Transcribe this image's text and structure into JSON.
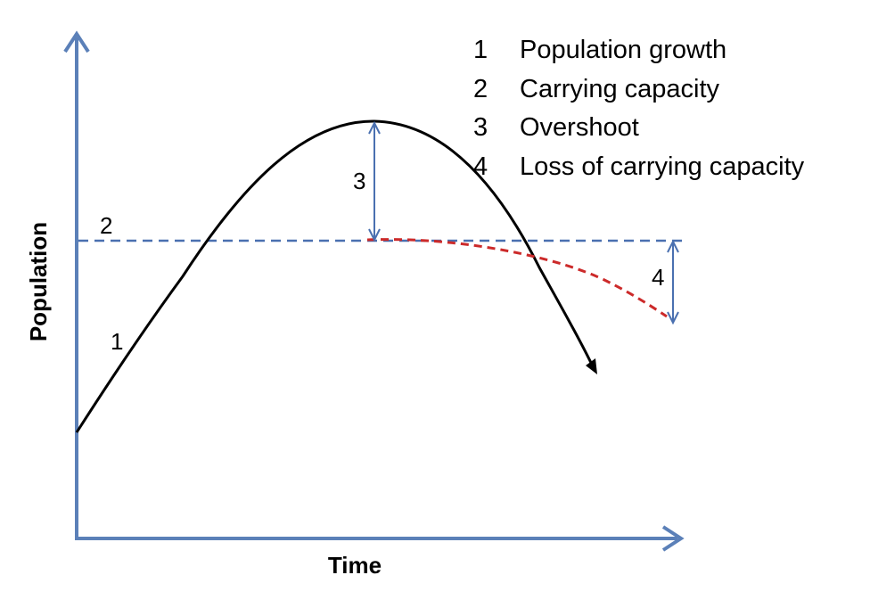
{
  "axes": {
    "x_label": "Time",
    "y_label": "Population",
    "axis_color": "#5b80b8"
  },
  "curves": {
    "growth_color": "#000000",
    "carrying_capacity_color": "#4a70b0",
    "loss_curve_color": "#cc2a2a",
    "measure_arrow_color": "#4a70b0"
  },
  "markers": {
    "growth": "1",
    "carrying_capacity": "2",
    "overshoot": "3",
    "loss": "4"
  },
  "legend": [
    {
      "number": "1",
      "text": "Population growth"
    },
    {
      "number": "2",
      "text": "Carrying capacity"
    },
    {
      "number": "3",
      "text": "Overshoot"
    },
    {
      "number": "4",
      "text": "Loss of carrying capacity"
    }
  ]
}
